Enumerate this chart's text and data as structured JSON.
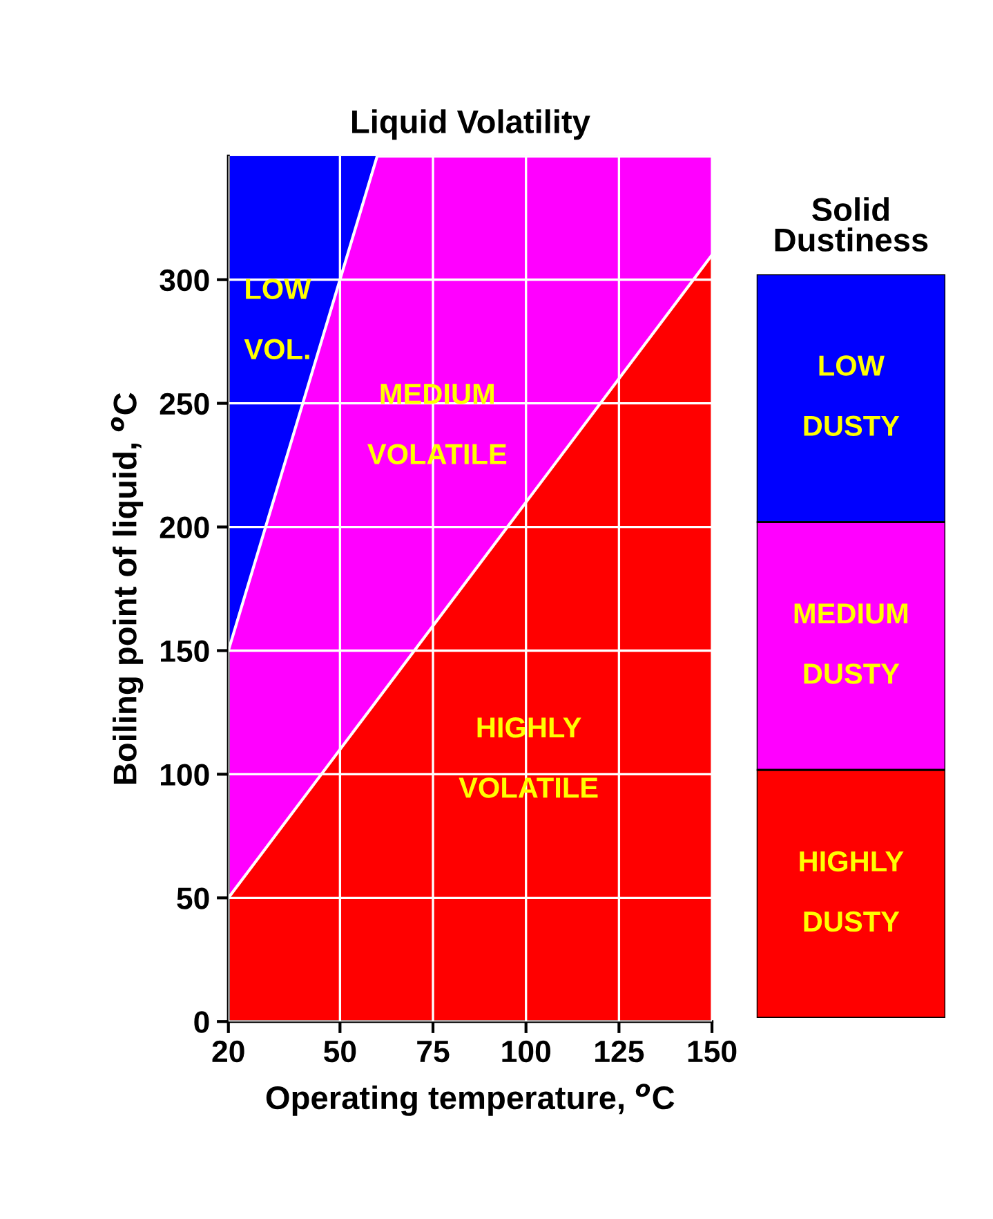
{
  "chart_data": [
    {
      "type": "area",
      "stacked": true,
      "title": "Liquid Volatility",
      "xlabel": "Operating temperature, $^{o}$C",
      "ylabel": "Boiling point of liquid, $^{o}$C",
      "x": [
        20,
        60,
        150
      ],
      "series": [
        {
          "name": "HIGHLY\nVOLATILE",
          "color": "#ff0000",
          "values": [
            50,
            130,
            310
          ]
        },
        {
          "name": "MEDIUM\nVOLATILE",
          "color": "#ff00ff",
          "values": [
            100,
            220,
            40
          ]
        },
        {
          "name": "LOW\nVOL.",
          "color": "#0000ff",
          "values": [
            200,
            0,
            0
          ]
        }
      ],
      "xlim": [
        20,
        150
      ],
      "ylim": [
        0,
        350
      ],
      "xticks": [
        20,
        50,
        75,
        100,
        125,
        150
      ],
      "yticks": [
        0,
        50,
        100,
        150,
        200,
        250,
        300
      ],
      "grid": true
    },
    {
      "type": "other",
      "title": "Solid\nDustiness",
      "categories": [
        "LOW\nDUSTY",
        "MEDIUM\nDUSTY",
        "HIGHLY\nDUSTY"
      ],
      "colors": [
        "#0000ff",
        "#ff00ff",
        "#ff0000"
      ]
    }
  ]
}
